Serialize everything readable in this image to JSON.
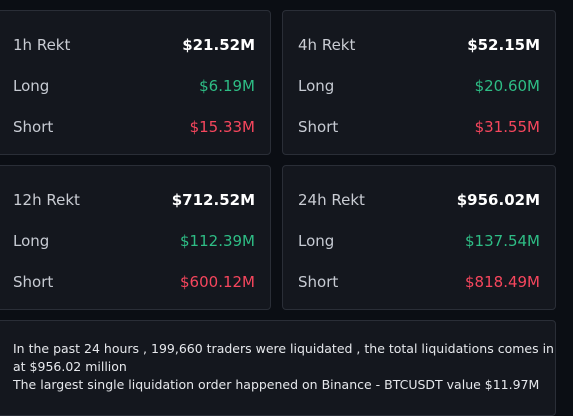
{
  "cards": [
    {
      "period": "1h Rekt",
      "total": "$21.52M",
      "long_label": "Long",
      "long_value": "$6.19M",
      "short_label": "Short",
      "short_value": "$15.33M"
    },
    {
      "period": "4h Rekt",
      "total": "$52.15M",
      "long_label": "Long",
      "long_value": "$20.60M",
      "short_label": "Short",
      "short_value": "$31.55M"
    },
    {
      "period": "12h Rekt",
      "total": "$712.52M",
      "long_label": "Long",
      "long_value": "$112.39M",
      "short_label": "Short",
      "short_value": "$600.12M"
    },
    {
      "period": "24h Rekt",
      "total": "$956.02M",
      "long_label": "Long",
      "long_value": "$137.54M",
      "short_label": "Short",
      "short_value": "$818.49M"
    }
  ],
  "summary": {
    "line1": "In the past 24 hours , 199,660 traders were liquidated , the total liquidations comes in at $956.02 million",
    "line2": "The largest single liquidation order happened on Binance - BTCUSDT value $11.97M"
  },
  "colors": {
    "background": "#0b0e14",
    "card": "#14171e",
    "long": "#2ebd85",
    "short": "#f6465d"
  }
}
